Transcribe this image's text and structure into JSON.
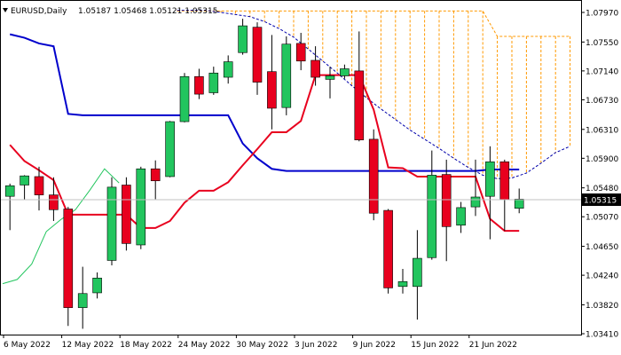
{
  "header": {
    "symbol": "EURUSD,Daily",
    "ohlc": "1.05187 1.05468 1.05121 1.05315"
  },
  "colors": {
    "bull": "#22c55e",
    "bear": "#e8001e",
    "tenkan": "#e8001e",
    "kijun": "#0000cc",
    "chikou": "#22c55e",
    "cloud": "#ff9900",
    "price_box_bg": "#000000",
    "price_box_fg": "#ffffff"
  },
  "chart_data": {
    "type": "candlestick",
    "title": "EURUSD,Daily",
    "ylim": [
      1.0341,
      1.0797
    ],
    "grid": false,
    "y_ticks": [
      "1.07970",
      "1.07550",
      "1.07140",
      "1.06730",
      "1.06310",
      "1.05900",
      "1.05480",
      "1.05070",
      "1.04650",
      "1.04240",
      "1.03820",
      "1.03410"
    ],
    "x_ticks": [
      {
        "index": 0,
        "label": "6 May 2022"
      },
      {
        "index": 4,
        "label": "12 May 2022"
      },
      {
        "index": 8,
        "label": "18 May 2022"
      },
      {
        "index": 12,
        "label": "24 May 2022"
      },
      {
        "index": 16,
        "label": "30 May 2022"
      },
      {
        "index": 20,
        "label": "3 Jun 2022"
      },
      {
        "index": 24,
        "label": "9 Jun 2022"
      },
      {
        "index": 28,
        "label": "15 Jun 2022"
      },
      {
        "index": 32,
        "label": "21 Jun 2022"
      }
    ],
    "current_price": "1.05315",
    "candles": [
      {
        "o": 1.0536,
        "h": 1.0554,
        "l": 1.0488,
        "c": 1.0551
      },
      {
        "o": 1.0552,
        "h": 1.0566,
        "l": 1.0531,
        "c": 1.0565
      },
      {
        "o": 1.0564,
        "h": 1.0578,
        "l": 1.0516,
        "c": 1.0538
      },
      {
        "o": 1.0538,
        "h": 1.0563,
        "l": 1.0501,
        "c": 1.0517
      },
      {
        "o": 1.0518,
        "h": 1.0521,
        "l": 1.0352,
        "c": 1.0378
      },
      {
        "o": 1.0378,
        "h": 1.0436,
        "l": 1.0348,
        "c": 1.0398
      },
      {
        "o": 1.0399,
        "h": 1.0428,
        "l": 1.0391,
        "c": 1.042
      },
      {
        "o": 1.0445,
        "h": 1.0563,
        "l": 1.0438,
        "c": 1.0549
      },
      {
        "o": 1.0552,
        "h": 1.0563,
        "l": 1.0459,
        "c": 1.0469
      },
      {
        "o": 1.0467,
        "h": 1.0578,
        "l": 1.0461,
        "c": 1.0575
      },
      {
        "o": 1.0575,
        "h": 1.0587,
        "l": 1.0532,
        "c": 1.0558
      },
      {
        "o": 1.0564,
        "h": 1.0643,
        "l": 1.0563,
        "c": 1.0642
      },
      {
        "o": 1.0642,
        "h": 1.0711,
        "l": 1.0641,
        "c": 1.0706
      },
      {
        "o": 1.0706,
        "h": 1.0717,
        "l": 1.0674,
        "c": 1.0681
      },
      {
        "o": 1.0683,
        "h": 1.072,
        "l": 1.068,
        "c": 1.0711
      },
      {
        "o": 1.0705,
        "h": 1.0736,
        "l": 1.0696,
        "c": 1.0727
      },
      {
        "o": 1.074,
        "h": 1.0788,
        "l": 1.0737,
        "c": 1.0778
      },
      {
        "o": 1.0776,
        "h": 1.0783,
        "l": 1.068,
        "c": 1.0698
      },
      {
        "o": 1.0713,
        "h": 1.0765,
        "l": 1.0631,
        "c": 1.0661
      },
      {
        "o": 1.0662,
        "h": 1.0763,
        "l": 1.0651,
        "c": 1.0752
      },
      {
        "o": 1.0753,
        "h": 1.0768,
        "l": 1.0715,
        "c": 1.0728
      },
      {
        "o": 1.0729,
        "h": 1.0749,
        "l": 1.0693,
        "c": 1.0705
      },
      {
        "o": 1.0702,
        "h": 1.072,
        "l": 1.0675,
        "c": 1.0707
      },
      {
        "o": 1.0707,
        "h": 1.0723,
        "l": 1.0703,
        "c": 1.0717
      },
      {
        "o": 1.0714,
        "h": 1.077,
        "l": 1.0614,
        "c": 1.0616
      },
      {
        "o": 1.0617,
        "h": 1.0631,
        "l": 1.0502,
        "c": 1.0512
      },
      {
        "o": 1.0516,
        "h": 1.0518,
        "l": 1.0398,
        "c": 1.0406
      },
      {
        "o": 1.0408,
        "h": 1.0433,
        "l": 1.0398,
        "c": 1.0415
      },
      {
        "o": 1.0408,
        "h": 1.0488,
        "l": 1.0361,
        "c": 1.0448
      },
      {
        "o": 1.0449,
        "h": 1.0601,
        "l": 1.0446,
        "c": 1.0566
      },
      {
        "o": 1.0567,
        "h": 1.0588,
        "l": 1.0444,
        "c": 1.0493
      },
      {
        "o": 1.0495,
        "h": 1.0528,
        "l": 1.0484,
        "c": 1.052
      },
      {
        "o": 1.0521,
        "h": 1.0588,
        "l": 1.0508,
        "c": 1.0535
      },
      {
        "o": 1.0536,
        "h": 1.0607,
        "l": 1.0475,
        "c": 1.0585
      },
      {
        "o": 1.0585,
        "h": 1.0588,
        "l": 1.0487,
        "c": 1.0531
      },
      {
        "o": 1.0519,
        "h": 1.0547,
        "l": 1.0512,
        "c": 1.0532
      }
    ],
    "tenkan": [
      1.0609,
      1.0586,
      1.0573,
      1.0559,
      1.051,
      1.051,
      1.051,
      1.051,
      1.051,
      1.0491,
      1.0491,
      1.0501,
      1.0527,
      1.0544,
      1.0544,
      1.0556,
      1.058,
      1.0603,
      1.0627,
      1.0627,
      1.0643,
      1.0708,
      1.0708,
      1.0708,
      1.0708,
      1.0659,
      1.0577,
      1.0576,
      1.0564,
      1.0564,
      1.0564,
      1.0564,
      1.0564,
      1.0504,
      1.0487,
      1.0487
    ],
    "kijun": [
      1.0766,
      1.0761,
      1.0753,
      1.0749,
      1.0653,
      1.0651,
      1.0651,
      1.0651,
      1.0651,
      1.0651,
      1.0651,
      1.0651,
      1.0651,
      1.0651,
      1.0651,
      1.0651,
      1.0611,
      1.059,
      1.0575,
      1.0572,
      1.0572,
      1.0572,
      1.0572,
      1.0572,
      1.0572,
      1.0572,
      1.0572,
      1.0572,
      1.0572,
      1.0572,
      1.0572,
      1.0572,
      1.0572,
      1.0574,
      1.0574,
      1.0574
    ],
    "chikou": [
      1.0412,
      1.0418,
      1.044,
      1.0486,
      1.0503,
      1.0517,
      1.0545,
      1.0575,
      1.0555
    ],
    "senkou_a": [
      null,
      null,
      null,
      null,
      null,
      null,
      null,
      null,
      null,
      null,
      null,
      null,
      null,
      null,
      null,
      null,
      null,
      null,
      null,
      null,
      null,
      null,
      null,
      null,
      null,
      null,
      null,
      null,
      null,
      null,
      null,
      null,
      null,
      null,
      null,
      null,
      null,
      null,
      null,
      null
    ],
    "senkou_b": [
      1.08,
      1.08,
      1.08,
      1.0797,
      1.0794,
      1.0791,
      1.0784,
      1.0774,
      1.0762,
      1.0745,
      1.0728,
      1.0711,
      1.0693,
      1.0676,
      1.066,
      1.0645,
      1.063,
      1.0617,
      1.0604,
      1.059,
      1.0577,
      1.0566,
      1.0561,
      1.0562,
      1.0569,
      1.0583,
      1.0598,
      1.0607,
      1.061,
      1.0615,
      1.062,
      1.0626,
      1.0629,
      1.0635,
      1.0643,
      1.0655,
      1.067,
      1.069,
      1.071,
      1.0725
    ],
    "cloud_top": [
      1.0799,
      1.0799,
      1.0799,
      1.0799,
      1.0799,
      1.0799,
      1.0799,
      1.0799,
      1.0799,
      1.0799,
      1.0799,
      1.0799,
      1.0799,
      1.0799,
      1.0799,
      1.0799,
      1.0799,
      1.0799,
      1.0799,
      1.0799,
      1.0799,
      1.0799,
      1.0763,
      1.0763,
      1.0763,
      1.0763,
      1.0763,
      1.0763,
      1.0763,
      1.0763,
      1.0763,
      1.0763,
      1.0763,
      1.0763,
      1.0763,
      1.0763,
      1.0763,
      1.0763,
      1.0763,
      1.0763
    ]
  }
}
